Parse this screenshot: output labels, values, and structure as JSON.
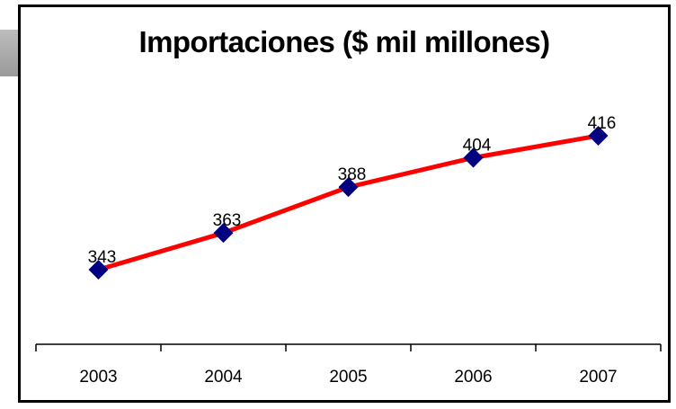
{
  "chart_data": {
    "type": "line",
    "title": "Importaciones ($ mil millones)",
    "categories": [
      "2003",
      "2004",
      "2005",
      "2006",
      "2007"
    ],
    "series": [
      {
        "values": [
          343,
          363,
          388,
          404,
          416
        ]
      }
    ],
    "data_labels": [
      "343",
      "363",
      "388",
      "404",
      "416"
    ],
    "ylim": [
      270,
      440
    ],
    "grid": false,
    "legend": "none",
    "colors": {
      "line": "#ff0000",
      "marker": "#000080",
      "frame": "#000000",
      "side_tab": "#a9a9a9"
    }
  }
}
